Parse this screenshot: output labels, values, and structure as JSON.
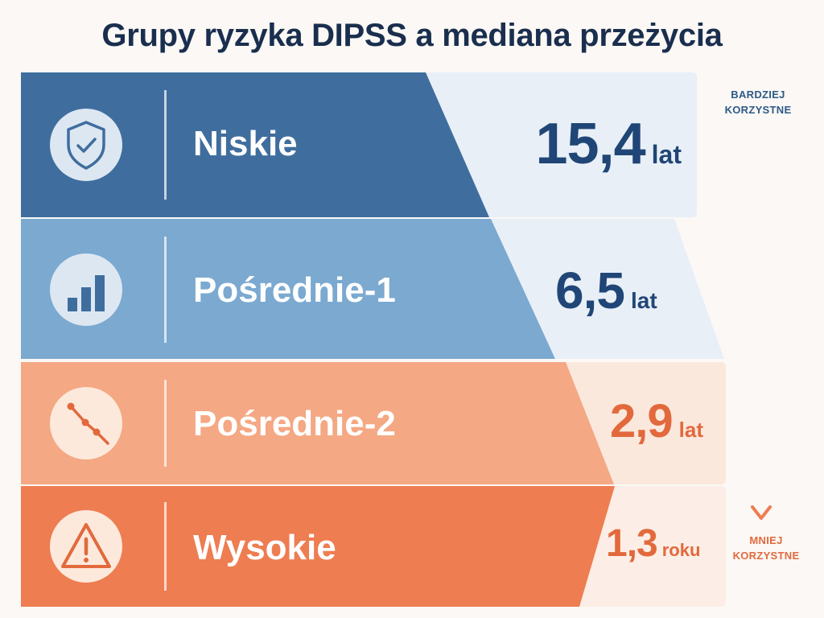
{
  "title": "Grupy ryzyka DIPSS a mediana przeżycia",
  "groups": [
    {
      "icon": "shield-check-icon",
      "label": "Niskie",
      "value": "15,4",
      "unit": "lat"
    },
    {
      "icon": "bar-chart-icon",
      "label": "Pośrednie-1",
      "value": "6,5",
      "unit": "lat"
    },
    {
      "icon": "declining-line-icon",
      "label": "Pośrednie-2",
      "value": "2,9",
      "unit": "lat"
    },
    {
      "icon": "warning-triangle-icon",
      "label": "Wysokie",
      "value": "1,3",
      "unit": "roku"
    }
  ],
  "scale": {
    "top": "BARDZIEJ\nKORZYSTNE",
    "bottom": "MNIEJ\nKORZYSTNE"
  },
  "colors": {
    "title": "#1a2e4e",
    "low_band": "#3f6e9e",
    "int1_band": "#7ba9d0",
    "int2_band": "#f4a883",
    "high_band": "#ee7d51",
    "blue_text": "#1f4676",
    "orange_text": "#e2693c"
  }
}
